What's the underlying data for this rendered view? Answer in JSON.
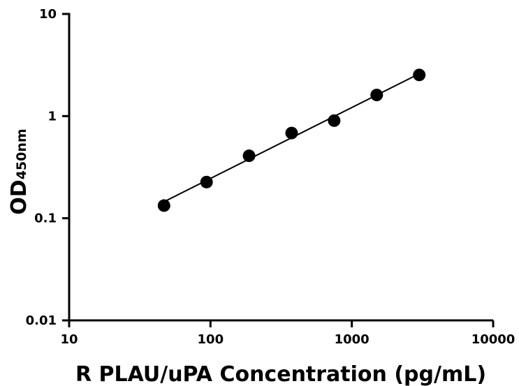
{
  "chart_data": {
    "type": "scatter",
    "title": "",
    "xlabel": "R PLAU/uPA Concentration (pg/mL)",
    "ylabel_main": "OD",
    "ylabel_sub": "450nm",
    "x_scale": "log",
    "y_scale": "log",
    "xlim": [
      10,
      10000
    ],
    "ylim": [
      0.01,
      10
    ],
    "x_ticks": [
      10,
      100,
      1000,
      10000
    ],
    "x_tick_labels": [
      "10",
      "100",
      "1000",
      "10000"
    ],
    "y_ticks": [
      0.01,
      0.1,
      1,
      10
    ],
    "y_tick_labels": [
      "0.01",
      "0.1",
      "1",
      "10"
    ],
    "grid": false,
    "legend": "none",
    "series": [
      {
        "x": [
          46.9,
          93.8,
          187.5,
          375,
          750,
          1500,
          3000
        ],
        "y": [
          0.133,
          0.226,
          0.409,
          0.683,
          0.903,
          1.61,
          2.53
        ]
      }
    ],
    "fit_line": {
      "x": [
        46.9,
        3000
      ],
      "y": [
        0.145,
        2.6
      ]
    },
    "colors": {
      "marker": "#000000",
      "line": "#000000",
      "axis": "#000000"
    }
  }
}
